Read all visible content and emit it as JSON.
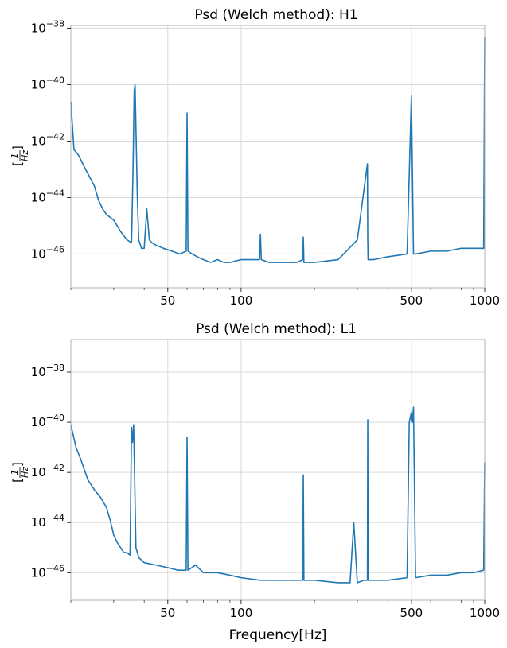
{
  "chart_data": [
    {
      "type": "line",
      "title": "Psd (Welch method): H1",
      "xlabel": "",
      "ylabel": "[1/Hz]",
      "x_scale": "log",
      "y_scale": "log",
      "xlim": [
        20,
        1000
      ],
      "ylim_exponent": [
        -47.2,
        -37.9
      ],
      "x_ticks": [
        {
          "value": 50,
          "label": "50"
        },
        {
          "value": 100,
          "label": "100"
        },
        {
          "value": 500,
          "label": "500"
        },
        {
          "value": 1000,
          "label": "1000"
        }
      ],
      "y_ticks": [
        {
          "exponent": -46,
          "base": "10",
          "sup": "−46"
        },
        {
          "exponent": -44,
          "base": "10",
          "sup": "−44"
        },
        {
          "exponent": -42,
          "base": "10",
          "sup": "−42"
        },
        {
          "exponent": -40,
          "base": "10",
          "sup": "−40"
        },
        {
          "exponent": -38,
          "base": "10",
          "sup": "−38"
        }
      ],
      "series": [
        {
          "color": "#1f77b4",
          "x": [
            20,
            20.6,
            21.5,
            23,
            25,
            26,
            27,
            28,
            30,
            32,
            34,
            35.5,
            36,
            36.4,
            36.7,
            37,
            37.5,
            38,
            39,
            40,
            41,
            42,
            43,
            45,
            48,
            52,
            56,
            59.5,
            60,
            60.5,
            63,
            66,
            70,
            75,
            80,
            85,
            90,
            100,
            110,
            119,
            120,
            121,
            130,
            150,
            170,
            179,
            180,
            181,
            200,
            250,
            300,
            330,
            331,
            332,
            350,
            400,
            480,
            500,
            510,
            520,
            600,
            700,
            800,
            900,
            990,
            1000
          ],
          "y_exp": [
            -40.6,
            -42.3,
            -42.5,
            -43.0,
            -43.6,
            -44.1,
            -44.4,
            -44.6,
            -44.8,
            -45.2,
            -45.5,
            -45.6,
            -43.0,
            -40.2,
            -40.0,
            -41.5,
            -44.0,
            -45.5,
            -45.8,
            -45.8,
            -44.4,
            -45.5,
            -45.6,
            -45.7,
            -45.8,
            -45.9,
            -46.0,
            -45.9,
            -41.0,
            -45.9,
            -46.0,
            -46.1,
            -46.2,
            -46.3,
            -46.2,
            -46.3,
            -46.3,
            -46.2,
            -46.2,
            -46.2,
            -45.3,
            -46.2,
            -46.3,
            -46.3,
            -46.3,
            -46.2,
            -45.4,
            -46.3,
            -46.3,
            -46.2,
            -45.5,
            -42.8,
            -45.5,
            -46.2,
            -46.2,
            -46.1,
            -46.0,
            -40.4,
            -46.0,
            -46.0,
            -45.9,
            -45.9,
            -45.8,
            -45.8,
            -45.8,
            -38.3
          ]
        }
      ]
    },
    {
      "type": "line",
      "title": "Psd (Welch method): L1",
      "xlabel": "Frequency[Hz]",
      "ylabel": "[1/Hz]",
      "x_scale": "log",
      "y_scale": "log",
      "xlim": [
        20,
        1000
      ],
      "ylim_exponent": [
        -47.1,
        -36.7
      ],
      "x_ticks": [
        {
          "value": 50,
          "label": "50"
        },
        {
          "value": 100,
          "label": "100"
        },
        {
          "value": 500,
          "label": "500"
        },
        {
          "value": 1000,
          "label": "1000"
        }
      ],
      "y_ticks": [
        {
          "exponent": -46,
          "base": "10",
          "sup": "−46"
        },
        {
          "exponent": -44,
          "base": "10",
          "sup": "−44"
        },
        {
          "exponent": -42,
          "base": "10",
          "sup": "−42"
        },
        {
          "exponent": -40,
          "base": "10",
          "sup": "−40"
        },
        {
          "exponent": -38,
          "base": "10",
          "sup": "−38"
        }
      ],
      "series": [
        {
          "color": "#1f77b4",
          "x": [
            20,
            21,
            22,
            23.5,
            25,
            26.5,
            28,
            29,
            30,
            31,
            32,
            33,
            34,
            35,
            35.5,
            35.8,
            36.2,
            36.6,
            37,
            38,
            40,
            45,
            50,
            55,
            59.5,
            60,
            60.5,
            65,
            70,
            80,
            90,
            100,
            120,
            150,
            170,
            179,
            180,
            181,
            200,
            250,
            280,
            290,
            300,
            320,
            330,
            331,
            332,
            350,
            400,
            480,
            490,
            500,
            505,
            510,
            520,
            600,
            700,
            800,
            900,
            990,
            1000
          ],
          "y_exp": [
            -40.1,
            -41.0,
            -41.5,
            -42.3,
            -42.7,
            -43.0,
            -43.4,
            -43.9,
            -44.5,
            -44.8,
            -45.0,
            -45.2,
            -45.2,
            -45.3,
            -40.2,
            -40.8,
            -40.1,
            -42.5,
            -45.0,
            -45.4,
            -45.6,
            -45.7,
            -45.8,
            -45.9,
            -45.9,
            -40.6,
            -45.9,
            -45.7,
            -46.0,
            -46.0,
            -46.1,
            -46.2,
            -46.3,
            -46.3,
            -46.3,
            -46.3,
            -42.1,
            -46.3,
            -46.3,
            -46.4,
            -46.4,
            -44.0,
            -46.4,
            -46.3,
            -46.3,
            -39.9,
            -46.3,
            -46.3,
            -46.3,
            -46.2,
            -40.0,
            -39.6,
            -40.0,
            -39.4,
            -46.2,
            -46.1,
            -46.1,
            -46.0,
            -46.0,
            -45.9,
            -41.6
          ]
        }
      ]
    }
  ]
}
